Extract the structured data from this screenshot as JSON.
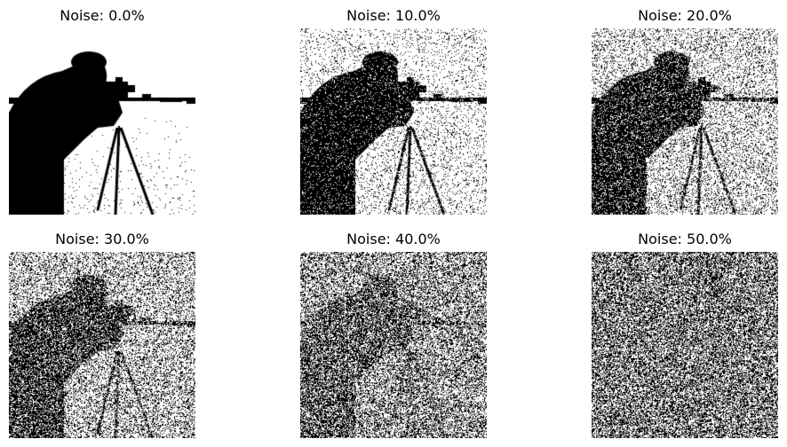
{
  "figure": {
    "panels": [
      {
        "title": "Noise: 0.0%",
        "noise": 0.0
      },
      {
        "title": "Noise: 10.0%",
        "noise": 0.1
      },
      {
        "title": "Noise: 20.0%",
        "noise": 0.2
      },
      {
        "title": "Noise: 30.0%",
        "noise": 0.3
      },
      {
        "title": "Noise: 40.0%",
        "noise": 0.4
      },
      {
        "title": "Noise: 50.0%",
        "noise": 0.5
      }
    ]
  },
  "colors": {
    "background": "#ffffff",
    "foreground": "#000000"
  }
}
